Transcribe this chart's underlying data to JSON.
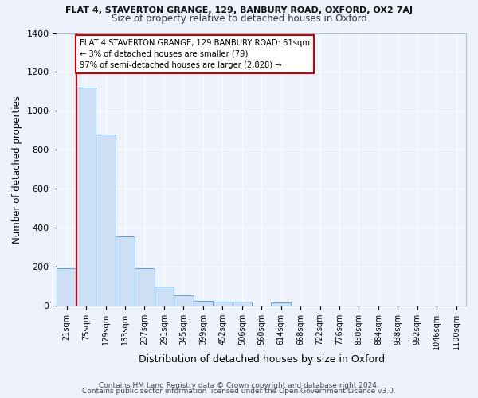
{
  "title": "FLAT 4, STAVERTON GRANGE, 129, BANBURY ROAD, OXFORD, OX2 7AJ",
  "subtitle": "Size of property relative to detached houses in Oxford",
  "xlabel": "Distribution of detached houses by size in Oxford",
  "ylabel": "Number of detached properties",
  "footer_line1": "Contains HM Land Registry data © Crown copyright and database right 2024.",
  "footer_line2": "Contains public sector information licensed under the Open Government Licence v3.0.",
  "annotation_line1": "FLAT 4 STAVERTON GRANGE, 129 BANBURY ROAD: 61sqm",
  "annotation_line2": "← 3% of detached houses are smaller (79)",
  "annotation_line3": "97% of semi-detached houses are larger (2,828) →",
  "bar_labels": [
    "21sqm",
    "75sqm",
    "129sqm",
    "183sqm",
    "237sqm",
    "291sqm",
    "345sqm",
    "399sqm",
    "452sqm",
    "506sqm",
    "560sqm",
    "614sqm",
    "668sqm",
    "722sqm",
    "776sqm",
    "830sqm",
    "884sqm",
    "938sqm",
    "992sqm",
    "1046sqm",
    "1100sqm"
  ],
  "bar_values": [
    190,
    1120,
    880,
    355,
    193,
    100,
    55,
    25,
    22,
    20,
    0,
    18,
    0,
    0,
    0,
    0,
    0,
    0,
    0,
    0,
    0
  ],
  "bar_color": "#ccdff5",
  "bar_edge_color": "#5a9fd4",
  "annotation_box_color": "#ffffff",
  "annotation_box_edge": "#cc0000",
  "property_line_x": 0.5,
  "ylim": [
    0,
    1400
  ],
  "yticks": [
    0,
    200,
    400,
    600,
    800,
    1000,
    1200,
    1400
  ],
  "background_color": "#edf2fc",
  "grid_color": "#ffffff"
}
